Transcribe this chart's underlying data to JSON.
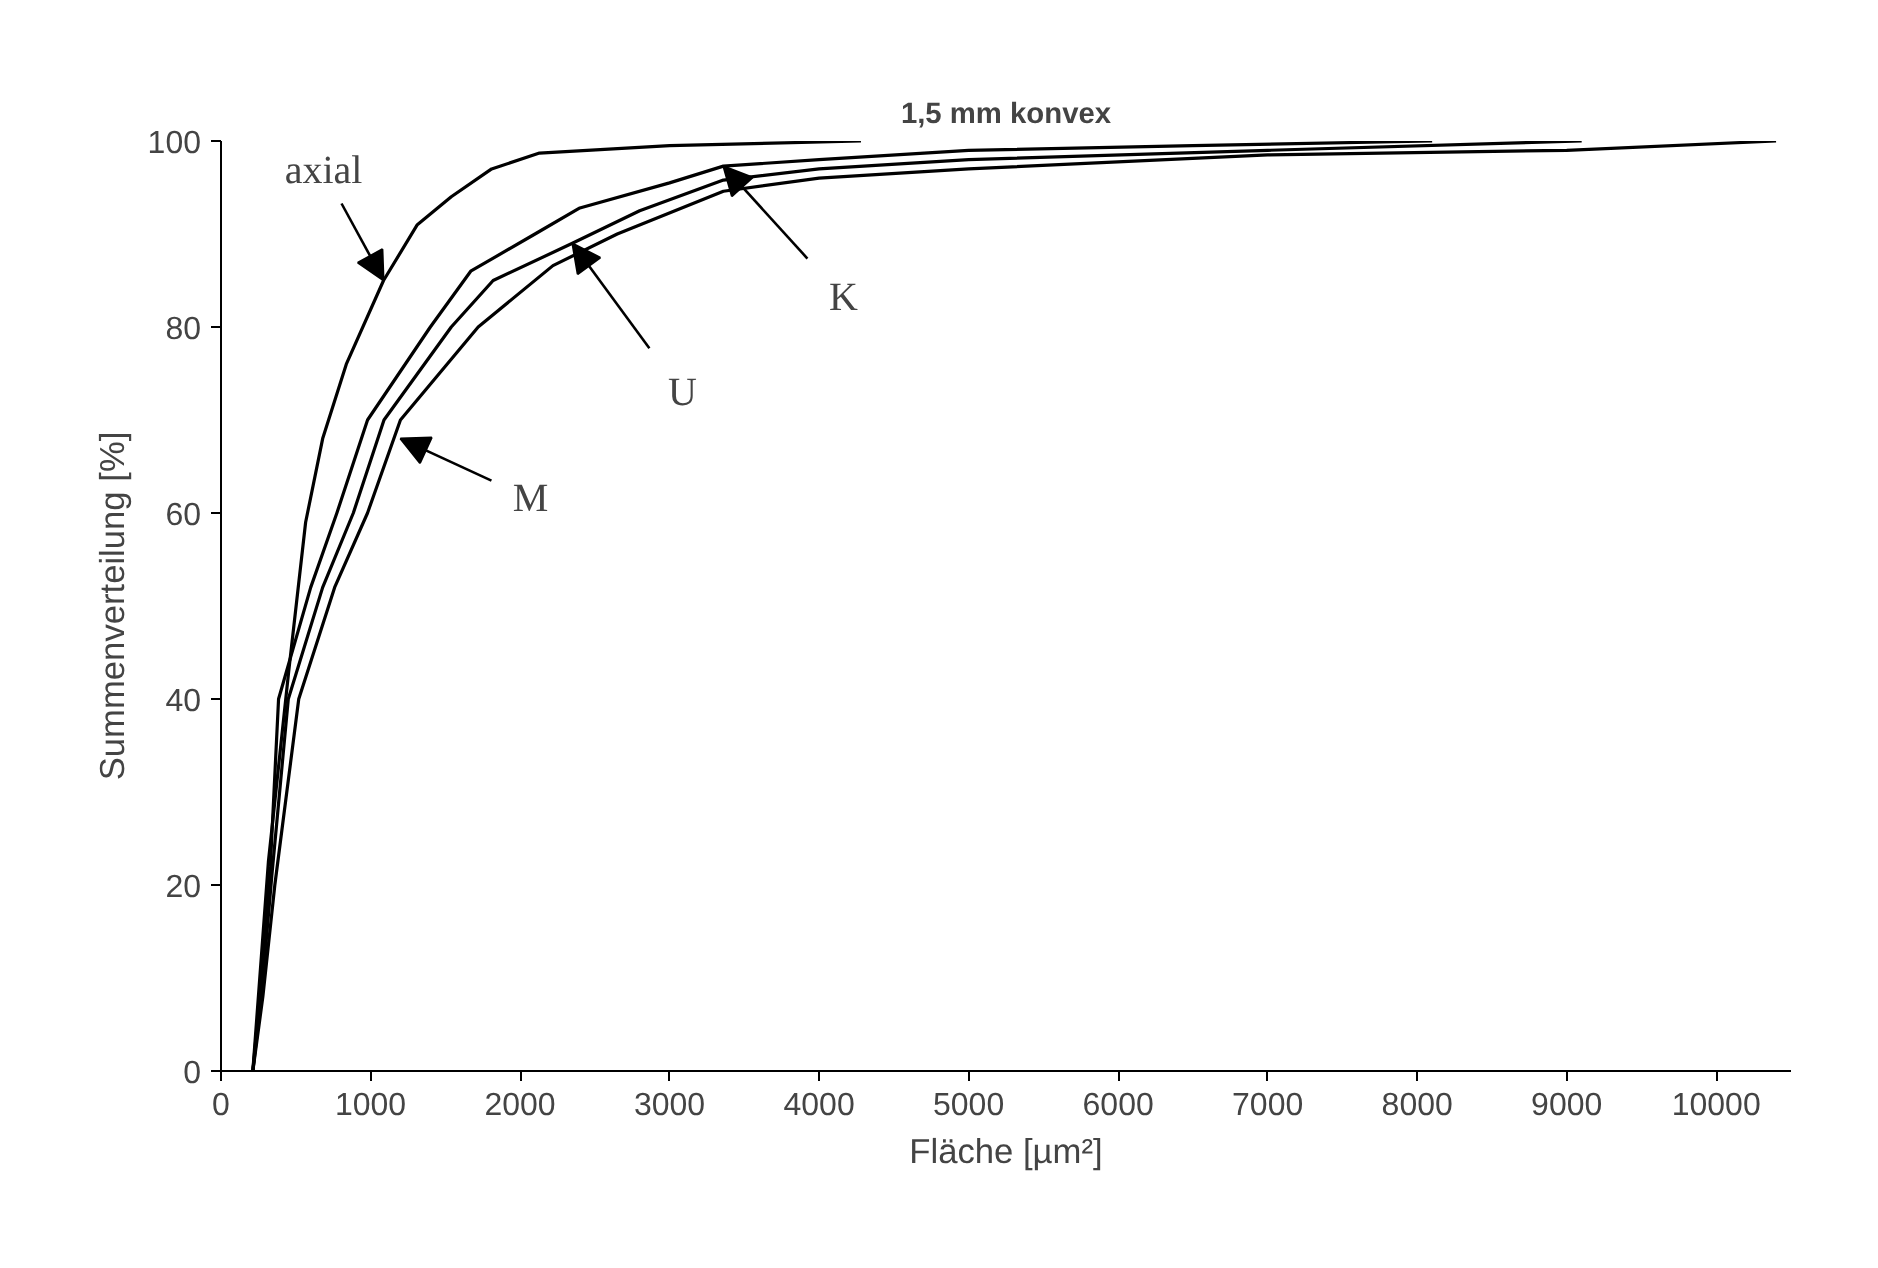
{
  "chart_data": {
    "type": "line",
    "title": "1,5 mm konvex",
    "xlabel": "Fläche [µm²]",
    "ylabel": "Summenverteilung [%]",
    "xlim": [
      0,
      10500
    ],
    "xticks": [
      0,
      1000,
      2000,
      3000,
      4000,
      5000,
      6000,
      7000,
      8000,
      9000,
      10000
    ],
    "ylim": [
      0,
      100
    ],
    "yticks": [
      0,
      20,
      40,
      60,
      80,
      100
    ],
    "grid": false,
    "marker": "none",
    "line_style": "solid",
    "series": [
      {
        "color": "#000000",
        "x": [
          213,
          250,
          317,
          453,
          566,
          680,
          838,
          1087,
          1313,
          1540,
          1810,
          2130,
          3000,
          4280
        ],
        "values": [
          0,
          8,
          22.5,
          43,
          59,
          68,
          76,
          85,
          91,
          94,
          97,
          98.7,
          99.5,
          100
        ]
      },
      {
        "color": "#000000",
        "x": [
          213,
          260,
          330,
          385,
          600,
          775,
          980,
          1400,
          1670,
          2100,
          2400,
          3000,
          3360,
          4000,
          5000,
          6500,
          8100
        ],
        "values": [
          0,
          8,
          22,
          40,
          52,
          60,
          70,
          80,
          86,
          90,
          92.8,
          95.5,
          97.3,
          98,
          99,
          99.5,
          100
        ]
      },
      {
        "color": "#000000",
        "x": [
          213,
          270,
          340,
          450,
          680,
          885,
          1090,
          1540,
          1820,
          2350,
          2800,
          3360,
          4000,
          5000,
          7000,
          9100
        ],
        "values": [
          0,
          8,
          21,
          40,
          52,
          60,
          70,
          80,
          85,
          89,
          92.5,
          95.8,
          97,
          98,
          99,
          100
        ]
      },
      {
        "color": "#000000",
        "x": [
          213,
          280,
          360,
          520,
          760,
          980,
          1200,
          1720,
          2220,
          2650,
          3360,
          4000,
          5000,
          7000,
          9000,
          10400
        ],
        "values": [
          0,
          8,
          20,
          40,
          52,
          60,
          70,
          80,
          86.6,
          90,
          94.6,
          96,
          97,
          98.5,
          99,
          100
        ]
      }
    ],
    "annotations": [
      {
        "text": "axial",
        "x": 1087,
        "y": 85
      },
      {
        "text": "U",
        "x": 2350,
        "y": 89
      },
      {
        "text": "K",
        "x": 3360,
        "y": 97.3
      },
      {
        "text": "M",
        "x": 1200,
        "y": 68
      }
    ]
  }
}
